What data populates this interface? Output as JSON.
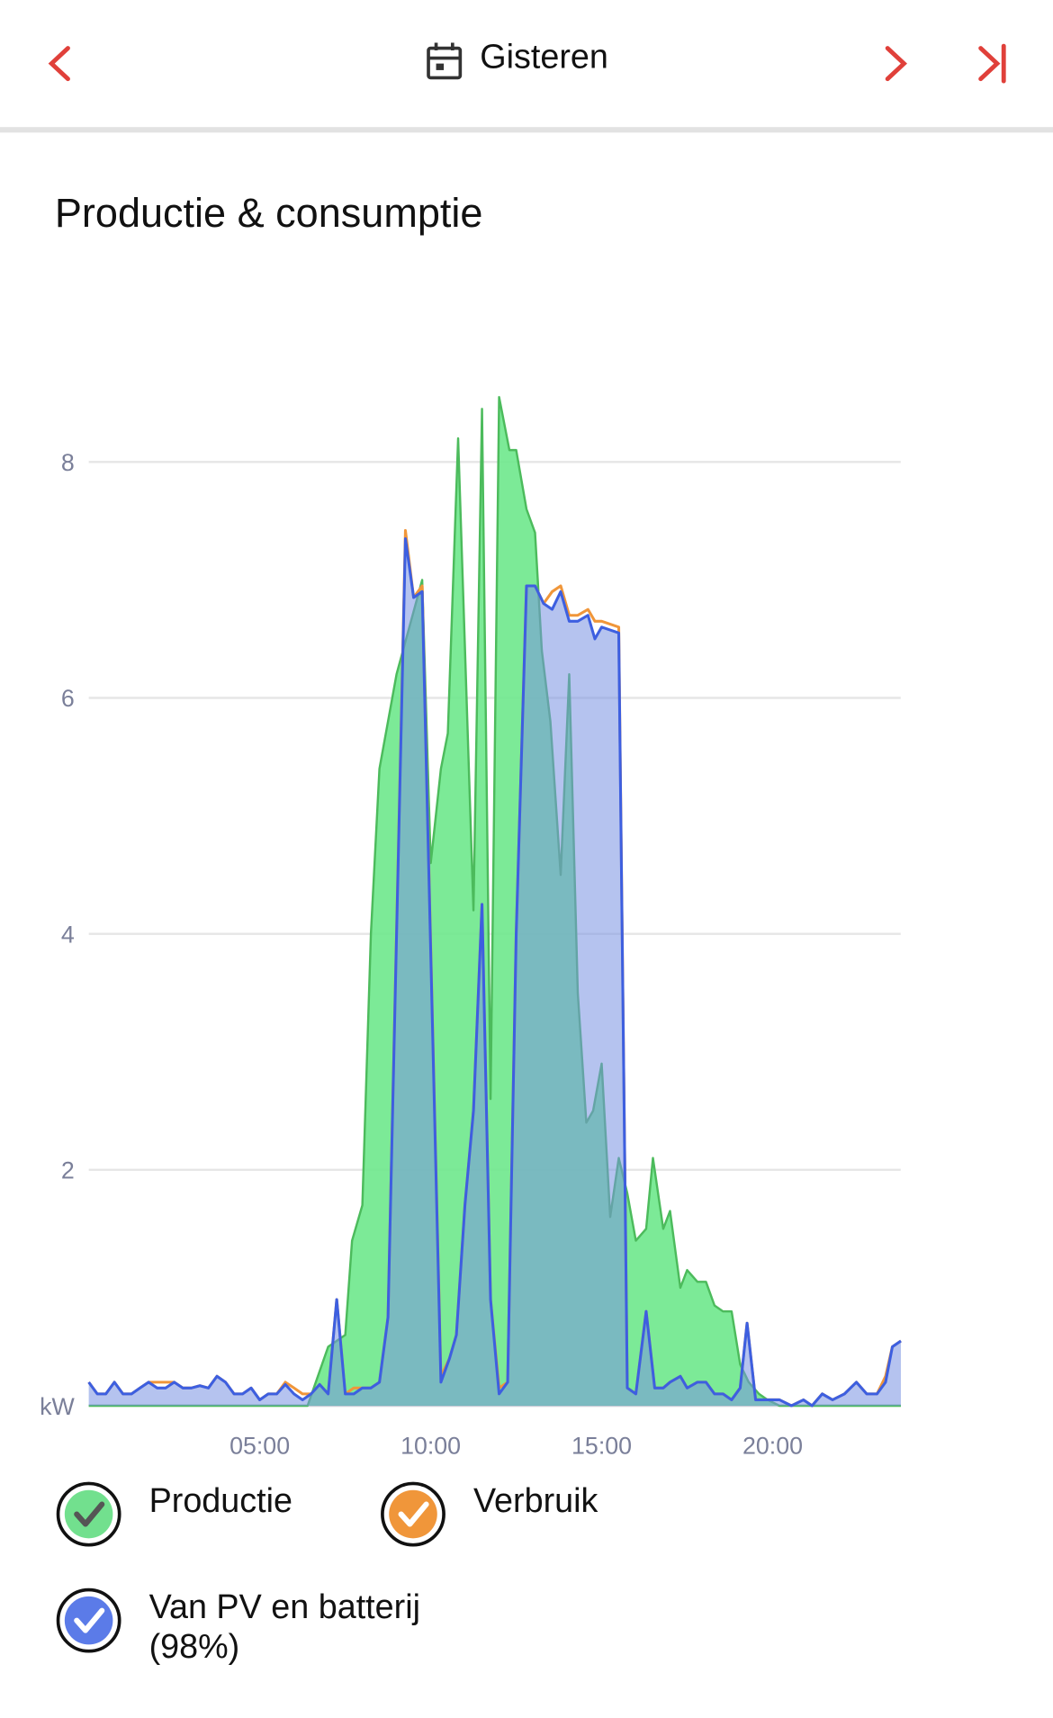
{
  "header": {
    "title": "Gisteren"
  },
  "chart_data": {
    "type": "area",
    "title": "Productie & consumptie",
    "xlim": [
      0,
      24
    ],
    "xticks": [
      {
        "value": 5,
        "label": "05:00"
      },
      {
        "value": 10,
        "label": "10:00"
      },
      {
        "value": 15,
        "label": "15:00"
      },
      {
        "value": 20,
        "label": "20:00"
      }
    ],
    "ylim": [
      0,
      8.6
    ],
    "yticks": [
      {
        "value": 0,
        "label": "kW"
      },
      2,
      4,
      6,
      8
    ],
    "grid": true,
    "series": [
      {
        "name": "Productie",
        "color": "#4cbb5c",
        "x": [
          0,
          6.4,
          7.0,
          7.5,
          7.7,
          8.0,
          8.25,
          8.5,
          9.0,
          9.75,
          10.0,
          10.3,
          10.5,
          10.8,
          11.25,
          11.5,
          11.75,
          12.0,
          12.3,
          12.5,
          12.8,
          13.05,
          13.25,
          13.5,
          13.8,
          14.05,
          14.3,
          14.55,
          14.75,
          15.0,
          15.25,
          15.5,
          15.75,
          16.0,
          16.3,
          16.5,
          16.8,
          17.0,
          17.3,
          17.5,
          17.8,
          18.05,
          18.3,
          18.55,
          18.8,
          19.05,
          19.3,
          19.6,
          19.85,
          20.2,
          23.75
        ],
        "values": [
          0,
          0,
          0.5,
          0.6,
          1.4,
          1.7,
          4.0,
          5.4,
          6.2,
          7.0,
          4.6,
          5.4,
          5.7,
          8.2,
          4.2,
          8.45,
          2.6,
          8.55,
          8.1,
          8.1,
          7.6,
          7.4,
          6.4,
          5.8,
          4.5,
          6.2,
          3.5,
          2.4,
          2.5,
          2.9,
          1.6,
          2.1,
          1.8,
          1.4,
          1.5,
          2.1,
          1.5,
          1.65,
          1.0,
          1.15,
          1.05,
          1.05,
          0.85,
          0.8,
          0.8,
          0.35,
          0.2,
          0.1,
          0.05,
          0,
          0
        ]
      },
      {
        "name": "Verbruik",
        "color": "#f0963a",
        "x": [
          0,
          0.25,
          0.5,
          0.75,
          1.0,
          1.25,
          1.5,
          1.75,
          2.0,
          2.25,
          2.5,
          2.75,
          3.0,
          3.25,
          3.5,
          3.75,
          4.0,
          4.25,
          4.5,
          4.75,
          5.0,
          5.25,
          5.5,
          5.75,
          6.0,
          6.25,
          6.5,
          6.75,
          7.0,
          7.25,
          7.5,
          7.75,
          8.0,
          8.25,
          8.5,
          8.75,
          9.26,
          9.5,
          9.75,
          10.3,
          10.55,
          10.75,
          11.0,
          11.25,
          11.5,
          11.75,
          12.0,
          12.25,
          12.5,
          12.8,
          13.05,
          13.3,
          13.55,
          13.8,
          14.05,
          14.3,
          14.6,
          14.8,
          15.0,
          15.5,
          15.75,
          16.0,
          16.3,
          16.55,
          16.8,
          17.0,
          17.3,
          17.5,
          17.8,
          18.05,
          18.3,
          18.55,
          18.8,
          19.05,
          19.25,
          19.5,
          19.85,
          20.2,
          20.55,
          20.9,
          21.15,
          21.45,
          21.75,
          22.1,
          22.45,
          22.75,
          23.05,
          23.3,
          23.5,
          23.75
        ],
        "values": [
          0.2,
          0.1,
          0.1,
          0.2,
          0.1,
          0.1,
          0.15,
          0.2,
          0.2,
          0.2,
          0.2,
          0.15,
          0.15,
          0.17,
          0.15,
          0.25,
          0.2,
          0.1,
          0.1,
          0.15,
          0.05,
          0.1,
          0.1,
          0.2,
          0.15,
          0.1,
          0.1,
          0.18,
          0.1,
          0.9,
          0.1,
          0.15,
          0.15,
          0.15,
          0.2,
          0.75,
          7.42,
          6.85,
          6.95,
          0.25,
          0.4,
          0.6,
          1.7,
          2.5,
          4.25,
          0.9,
          0.15,
          0.2,
          4.0,
          6.95,
          6.95,
          6.8,
          6.9,
          6.95,
          6.7,
          6.7,
          6.75,
          6.65,
          6.65,
          6.6,
          0.15,
          0.1,
          0.8,
          0.15,
          0.15,
          0.2,
          0.25,
          0.15,
          0.2,
          0.2,
          0.1,
          0.1,
          0.05,
          0.15,
          0.7,
          0.05,
          0.05,
          0.05,
          0,
          0.05,
          0,
          0.1,
          0.05,
          0.1,
          0.2,
          0.1,
          0.1,
          0.25,
          0.5,
          0.55
        ]
      },
      {
        "name": "Van PV en batterij (98%)",
        "color": "#3d5fe0",
        "x": [
          0,
          0.25,
          0.5,
          0.75,
          1.0,
          1.25,
          1.5,
          1.75,
          2.0,
          2.25,
          2.5,
          2.75,
          3.0,
          3.25,
          3.5,
          3.75,
          4.0,
          4.25,
          4.5,
          4.75,
          5.0,
          5.25,
          5.5,
          5.75,
          6.0,
          6.25,
          6.5,
          6.75,
          7.0,
          7.25,
          7.5,
          7.75,
          8.0,
          8.25,
          8.5,
          8.75,
          9.26,
          9.5,
          9.75,
          10.3,
          10.55,
          10.75,
          11.0,
          11.25,
          11.5,
          11.75,
          12.0,
          12.25,
          12.5,
          12.8,
          13.05,
          13.3,
          13.55,
          13.8,
          14.05,
          14.3,
          14.6,
          14.8,
          15.0,
          15.5,
          15.75,
          16.0,
          16.3,
          16.55,
          16.8,
          17.0,
          17.3,
          17.5,
          17.8,
          18.05,
          18.3,
          18.55,
          18.8,
          19.05,
          19.25,
          19.5,
          19.85,
          20.2,
          20.55,
          20.9,
          21.15,
          21.45,
          21.75,
          22.1,
          22.45,
          22.75,
          23.05,
          23.3,
          23.5,
          23.75
        ],
        "values": [
          0.2,
          0.1,
          0.1,
          0.2,
          0.1,
          0.1,
          0.15,
          0.2,
          0.15,
          0.15,
          0.2,
          0.15,
          0.15,
          0.17,
          0.15,
          0.25,
          0.2,
          0.1,
          0.1,
          0.15,
          0.05,
          0.1,
          0.1,
          0.18,
          0.1,
          0.05,
          0.1,
          0.18,
          0.1,
          0.9,
          0.1,
          0.1,
          0.15,
          0.15,
          0.2,
          0.75,
          7.35,
          6.85,
          6.9,
          0.2,
          0.4,
          0.6,
          1.7,
          2.5,
          4.25,
          0.9,
          0.1,
          0.2,
          4.0,
          6.95,
          6.95,
          6.8,
          6.75,
          6.9,
          6.65,
          6.65,
          6.7,
          6.5,
          6.6,
          6.55,
          0.15,
          0.1,
          0.8,
          0.15,
          0.15,
          0.2,
          0.25,
          0.15,
          0.2,
          0.2,
          0.1,
          0.1,
          0.05,
          0.15,
          0.7,
          0.05,
          0.05,
          0.05,
          0,
          0.05,
          0,
          0.1,
          0.05,
          0.1,
          0.2,
          0.1,
          0.1,
          0.2,
          0.5,
          0.55
        ]
      }
    ]
  }
}
